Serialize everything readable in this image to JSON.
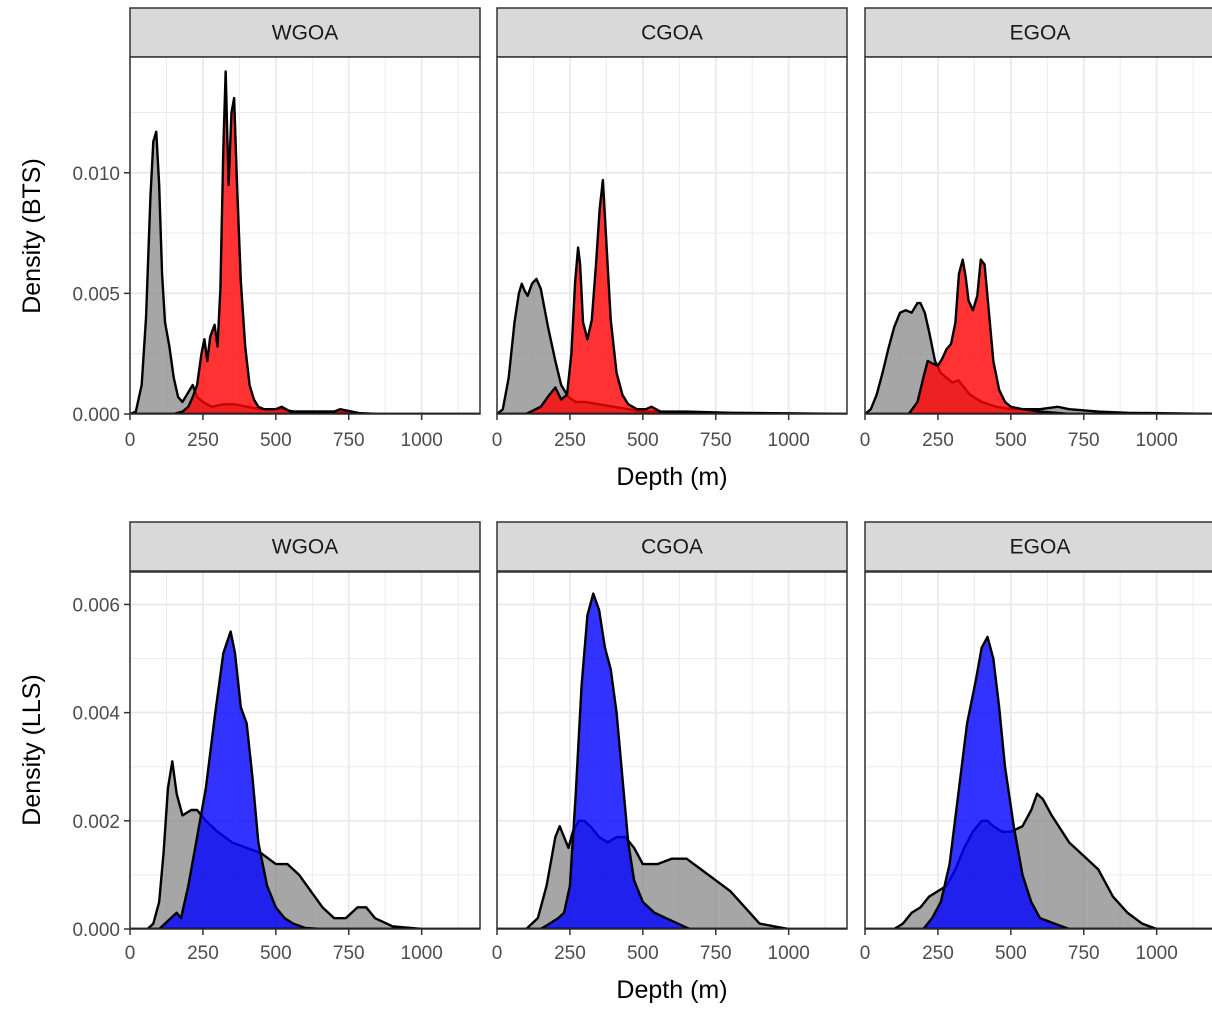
{
  "colors": {
    "background": "#ffffff",
    "strip_fill": "#d9d9d9",
    "panel_border": "#333333",
    "grid": "#ebebeb",
    "reference": "#808080",
    "bts_target": "#ff0000",
    "lls_target": "#0000ff",
    "outline": "#000000"
  },
  "chart_data": [
    {
      "type": "area",
      "subtype": "density",
      "survey": "BTS",
      "xlabel": "Depth (m)",
      "ylabel": "Density (BTS)",
      "xlim": [
        0,
        1200
      ],
      "ylim": [
        0,
        0.0148
      ],
      "xticks": [
        0,
        250,
        500,
        750,
        1000
      ],
      "xtick_labels": [
        "0",
        "250",
        "500",
        "750",
        "1000"
      ],
      "yticks": [
        0,
        0.005,
        0.01
      ],
      "ytick_labels": [
        "0.000",
        "0.005",
        "0.010"
      ],
      "grid": true,
      "legend": "none",
      "panels": [
        {
          "strip": "WGOA",
          "series": [
            {
              "color": "#808080",
              "opacity": 0.7,
              "x": [
                0,
                20,
                40,
                55,
                70,
                80,
                90,
                100,
                110,
                120,
                135,
                150,
                165,
                180,
                200,
                215,
                230,
                250,
                280,
                320,
                360,
                400,
                450,
                520,
                560,
                620,
                700,
                760,
                850,
                1200
              ],
              "y": [
                0,
                0.0001,
                0.0012,
                0.004,
                0.009,
                0.0113,
                0.0117,
                0.0095,
                0.0058,
                0.0038,
                0.0028,
                0.0015,
                0.0007,
                0.0005,
                0.0009,
                0.0012,
                0.0007,
                0.0005,
                0.0003,
                0.0004,
                0.0004,
                0.0003,
                0.0002,
                0.0002,
                0.0001,
                0.0001,
                0.0001,
                5e-05,
                0,
                0
              ]
            },
            {
              "color": "#ff0000",
              "opacity": 0.8,
              "x": [
                0,
                150,
                180,
                200,
                215,
                230,
                245,
                255,
                265,
                275,
                290,
                300,
                310,
                320,
                328,
                338,
                348,
                357,
                367,
                380,
                395,
                410,
                425,
                440,
                460,
                500,
                520,
                550,
                700,
                720,
                760,
                800,
                1200
              ],
              "y": [
                0,
                0,
                0.0001,
                0.0003,
                0.0007,
                0.0012,
                0.0025,
                0.0031,
                0.0022,
                0.0032,
                0.0037,
                0.0028,
                0.0052,
                0.011,
                0.0142,
                0.0095,
                0.0125,
                0.0131,
                0.0095,
                0.0055,
                0.0028,
                0.0012,
                0.0006,
                0.0003,
                0.0002,
                0.0002,
                0.0003,
                0.0001,
                0.0001,
                0.0002,
                0.0001,
                0,
                0
              ]
            }
          ]
        },
        {
          "strip": "CGOA",
          "series": [
            {
              "color": "#808080",
              "opacity": 0.7,
              "x": [
                0,
                20,
                40,
                60,
                75,
                85,
                95,
                105,
                120,
                135,
                150,
                175,
                200,
                220,
                245,
                270,
                300,
                350,
                400,
                450,
                500,
                550,
                650,
                800,
                1200
              ],
              "y": [
                0,
                0.0002,
                0.0015,
                0.0038,
                0.005,
                0.0054,
                0.0051,
                0.0049,
                0.0054,
                0.0056,
                0.0052,
                0.0036,
                0.0022,
                0.0012,
                0.0007,
                0.0005,
                0.0005,
                0.0004,
                0.0003,
                0.0002,
                0.0001,
                0.0001,
                0.0001,
                5e-05,
                0
              ]
            },
            {
              "color": "#ff0000",
              "opacity": 0.8,
              "x": [
                0,
                100,
                150,
                180,
                200,
                220,
                240,
                255,
                268,
                278,
                285,
                295,
                310,
                325,
                340,
                352,
                363,
                375,
                390,
                410,
                430,
                450,
                480,
                510,
                530,
                560,
                600,
                1200
              ],
              "y": [
                0,
                0,
                0.0003,
                0.0008,
                0.0011,
                0.0006,
                0.0008,
                0.0025,
                0.0055,
                0.0069,
                0.0062,
                0.0038,
                0.0031,
                0.0039,
                0.0063,
                0.0085,
                0.0097,
                0.0071,
                0.0039,
                0.0017,
                0.0008,
                0.0004,
                0.0002,
                0.0002,
                0.0003,
                0.0001,
                0,
                0
              ]
            }
          ]
        },
        {
          "strip": "EGOA",
          "series": [
            {
              "color": "#808080",
              "opacity": 0.7,
              "x": [
                0,
                20,
                40,
                60,
                80,
                100,
                120,
                140,
                160,
                180,
                190,
                205,
                220,
                240,
                260,
                280,
                300,
                320,
                340,
                360,
                400,
                450,
                500,
                600,
                660,
                700,
                800,
                900,
                1200
              ],
              "y": [
                0,
                0.0002,
                0.0008,
                0.0017,
                0.0027,
                0.0036,
                0.0042,
                0.0043,
                0.0042,
                0.0046,
                0.0046,
                0.0042,
                0.0034,
                0.0022,
                0.0017,
                0.0015,
                0.0013,
                0.0014,
                0.0011,
                0.0008,
                0.0005,
                0.0003,
                0.0002,
                0.0002,
                0.0003,
                0.0002,
                0.0001,
                5e-05,
                0
              ]
            },
            {
              "color": "#ff0000",
              "opacity": 0.8,
              "x": [
                0,
                150,
                180,
                200,
                215,
                230,
                250,
                265,
                280,
                295,
                310,
                322,
                335,
                345,
                355,
                370,
                385,
                397,
                410,
                425,
                440,
                460,
                480,
                500,
                540,
                600,
                700,
                1200
              ],
              "y": [
                0,
                0,
                0.0005,
                0.0015,
                0.0022,
                0.0021,
                0.002,
                0.0023,
                0.0027,
                0.0029,
                0.0038,
                0.0058,
                0.0064,
                0.0057,
                0.0047,
                0.0043,
                0.0049,
                0.0064,
                0.0062,
                0.0042,
                0.0022,
                0.001,
                0.0005,
                0.0003,
                0.0002,
                0.0001,
                0,
                0
              ]
            }
          ]
        }
      ]
    },
    {
      "type": "area",
      "subtype": "density",
      "survey": "LLS",
      "xlabel": "Depth (m)",
      "ylabel": "Density (LLS)",
      "xlim": [
        0,
        1200
      ],
      "ylim": [
        0,
        0.0066
      ],
      "xticks": [
        0,
        250,
        500,
        750,
        1000
      ],
      "xtick_labels": [
        "0",
        "250",
        "500",
        "750",
        "1000"
      ],
      "yticks": [
        0,
        0.002,
        0.004,
        0.006
      ],
      "ytick_labels": [
        "0.000",
        "0.002",
        "0.004",
        "0.006"
      ],
      "grid": true,
      "legend": "none",
      "panels": [
        {
          "strip": "WGOA",
          "series": [
            {
              "color": "#808080",
              "opacity": 0.7,
              "x": [
                0,
                60,
                80,
                100,
                115,
                130,
                145,
                160,
                180,
                210,
                230,
                260,
                300,
                350,
                400,
                450,
                500,
                540,
                580,
                620,
                660,
                700,
                740,
                780,
                810,
                840,
                900,
                1000,
                1200
              ],
              "y": [
                0,
                0,
                0.0001,
                0.0005,
                0.0014,
                0.0026,
                0.0031,
                0.0025,
                0.0021,
                0.0022,
                0.0022,
                0.002,
                0.0018,
                0.0016,
                0.0015,
                0.0014,
                0.0012,
                0.0012,
                0.001,
                0.0007,
                0.0004,
                0.0002,
                0.0002,
                0.0004,
                0.0004,
                0.0002,
                5e-05,
                0,
                0
              ]
            },
            {
              "color": "#0000ff",
              "opacity": 0.8,
              "x": [
                0,
                100,
                120,
                140,
                160,
                175,
                200,
                230,
                260,
                290,
                320,
                345,
                360,
                380,
                400,
                420,
                440,
                470,
                500,
                530,
                560,
                600,
                650,
                1200
              ],
              "y": [
                0,
                0,
                0.0001,
                0.0002,
                0.0003,
                0.0002,
                0.0008,
                0.0017,
                0.0026,
                0.0039,
                0.0051,
                0.0055,
                0.0051,
                0.0041,
                0.0038,
                0.0028,
                0.0016,
                0.0008,
                0.0004,
                0.0002,
                0.0001,
                2e-05,
                0,
                0
              ]
            }
          ]
        },
        {
          "strip": "CGOA",
          "series": [
            {
              "color": "#808080",
              "opacity": 0.7,
              "x": [
                0,
                100,
                140,
                170,
                200,
                215,
                230,
                245,
                260,
                280,
                300,
                320,
                350,
                380,
                410,
                440,
                470,
                500,
                550,
                600,
                650,
                700,
                750,
                800,
                850,
                900,
                1000,
                1200
              ],
              "y": [
                0,
                0,
                0.0002,
                0.0008,
                0.0017,
                0.0019,
                0.0017,
                0.0015,
                0.0018,
                0.002,
                0.002,
                0.0019,
                0.0017,
                0.0016,
                0.0017,
                0.0017,
                0.0015,
                0.0012,
                0.0012,
                0.0013,
                0.0013,
                0.0011,
                0.0009,
                0.0007,
                0.0004,
                0.0001,
                0,
                0
              ]
            },
            {
              "color": "#0000ff",
              "opacity": 0.8,
              "x": [
                0,
                150,
                180,
                210,
                230,
                250,
                270,
                290,
                310,
                330,
                350,
                370,
                390,
                410,
                430,
                450,
                470,
                500,
                540,
                580,
                620,
                660,
                1200
              ],
              "y": [
                0,
                0,
                0.0001,
                0.0002,
                0.0003,
                0.0008,
                0.0025,
                0.0045,
                0.0058,
                0.0062,
                0.0059,
                0.0052,
                0.0048,
                0.004,
                0.0028,
                0.0016,
                0.0009,
                0.0005,
                0.0003,
                0.0002,
                0.0001,
                0,
                0
              ]
            }
          ]
        },
        {
          "strip": "EGOA",
          "series": [
            {
              "color": "#808080",
              "opacity": 0.7,
              "x": [
                0,
                100,
                130,
                160,
                190,
                220,
                250,
                280,
                310,
                340,
                370,
                400,
                420,
                440,
                470,
                500,
                540,
                570,
                590,
                610,
                640,
                700,
                760,
                800,
                820,
                850,
                900,
                950,
                1000,
                1200
              ],
              "y": [
                0,
                0,
                0.0001,
                0.0003,
                0.0004,
                0.0006,
                0.0007,
                0.0008,
                0.0011,
                0.0015,
                0.0018,
                0.002,
                0.002,
                0.0019,
                0.0018,
                0.0018,
                0.0019,
                0.0022,
                0.0025,
                0.0024,
                0.0021,
                0.0016,
                0.0013,
                0.0011,
                0.0009,
                0.0006,
                0.0003,
                0.0001,
                0,
                0
              ]
            },
            {
              "color": "#0000ff",
              "opacity": 0.8,
              "x": [
                0,
                200,
                230,
                260,
                290,
                320,
                350,
                380,
                400,
                420,
                440,
                460,
                480,
                510,
                540,
                570,
                600,
                650,
                700,
                1200
              ],
              "y": [
                0,
                0,
                0.0002,
                0.0005,
                0.0012,
                0.0025,
                0.0038,
                0.0046,
                0.0052,
                0.0054,
                0.005,
                0.0041,
                0.003,
                0.0019,
                0.001,
                0.0005,
                0.0002,
                0.0001,
                0,
                0
              ]
            }
          ]
        }
      ]
    }
  ]
}
